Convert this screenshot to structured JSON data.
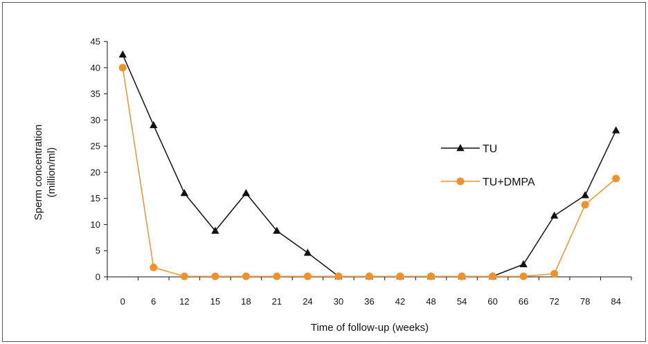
{
  "chart_data": {
    "type": "line",
    "title": "",
    "xlabel": "Time of follow-up (weeks)",
    "ylabel": "Sperm concentration",
    "ylabel_unit": "(million/ml)",
    "categories": [
      "0",
      "6",
      "12",
      "15",
      "18",
      "21",
      "24",
      "30",
      "36",
      "42",
      "48",
      "54",
      "60",
      "66",
      "72",
      "78",
      "84"
    ],
    "yticks": [
      "0",
      "5",
      "10",
      "15",
      "20",
      "25",
      "30",
      "35",
      "40",
      "45"
    ],
    "ylim": [
      0,
      45
    ],
    "grid": false,
    "legend_position": "right",
    "series": [
      {
        "name": "TU",
        "marker": "triangle",
        "color": "#111111",
        "values": [
          42.5,
          29,
          16,
          8.8,
          16,
          8.8,
          4.6,
          0.1,
          0.1,
          0.1,
          0.1,
          0.1,
          0.1,
          2.4,
          11.7,
          15.6,
          28
        ]
      },
      {
        "name": "TU+DMPA",
        "marker": "circle",
        "color": "#F0922C",
        "values": [
          40,
          1.8,
          0.1,
          0.1,
          0.1,
          0.1,
          0.1,
          0.1,
          0.1,
          0.1,
          0.1,
          0.1,
          0.1,
          0.1,
          0.6,
          13.8,
          18.8
        ]
      }
    ]
  }
}
